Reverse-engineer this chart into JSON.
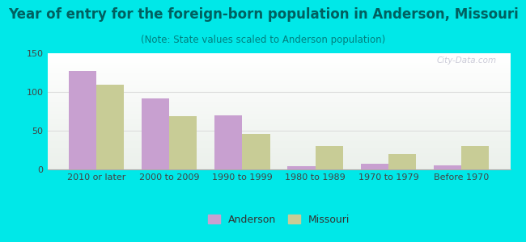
{
  "title": "Year of entry for the foreign-born population in Anderson, Missouri",
  "subtitle": "(Note: State values scaled to Anderson population)",
  "categories": [
    "2010 or later",
    "2000 to 2009",
    "1990 to 1999",
    "1980 to 1989",
    "1970 to 1979",
    "Before 1970"
  ],
  "anderson_values": [
    127,
    92,
    70,
    4,
    7,
    5
  ],
  "missouri_values": [
    109,
    69,
    46,
    30,
    20,
    30
  ],
  "anderson_color": "#c8a0d0",
  "missouri_color": "#c8cc96",
  "background_color": "#00e8e8",
  "ylim": [
    0,
    150
  ],
  "yticks": [
    0,
    50,
    100,
    150
  ],
  "bar_width": 0.38,
  "title_fontsize": 12,
  "subtitle_fontsize": 8.5,
  "legend_fontsize": 9,
  "tick_fontsize": 8,
  "title_color": "#006060",
  "subtitle_color": "#008080",
  "tick_color": "#444444",
  "watermark": "City-Data.com"
}
